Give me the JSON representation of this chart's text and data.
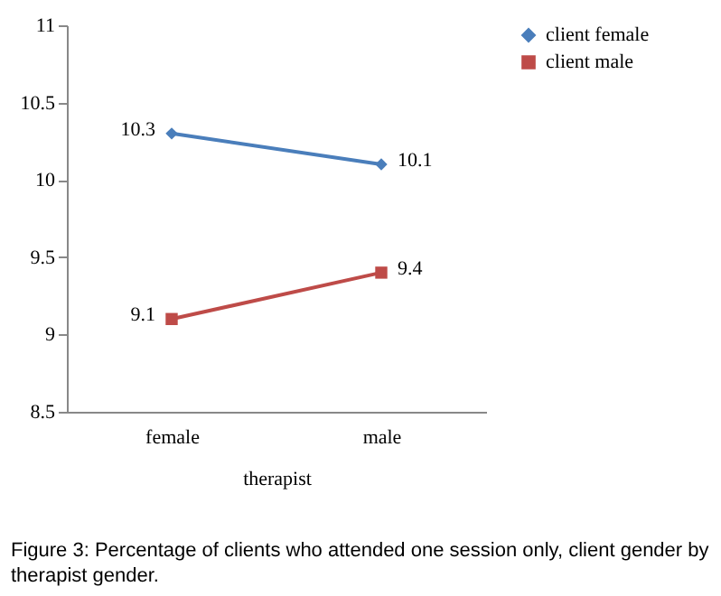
{
  "chart_data": {
    "type": "line",
    "xlabel": "therapist",
    "categories": [
      "female",
      "male"
    ],
    "series": [
      {
        "name": "client female",
        "color": "#4a7ebb",
        "marker": "diamond",
        "values": [
          10.3,
          10.1
        ]
      },
      {
        "name": "client male",
        "color": "#be4b48",
        "marker": "square",
        "values": [
          9.1,
          9.4
        ]
      }
    ],
    "ylim": [
      8.5,
      11
    ],
    "yticks": [
      8.5,
      9,
      9.5,
      10,
      10.5,
      11
    ],
    "grid": false,
    "legend": "right",
    "data_labels": true,
    "line_style": "solid",
    "annotations": [
      "Figure 3: Percentage of clients who attended one session only, client gender by therapist gender."
    ]
  }
}
